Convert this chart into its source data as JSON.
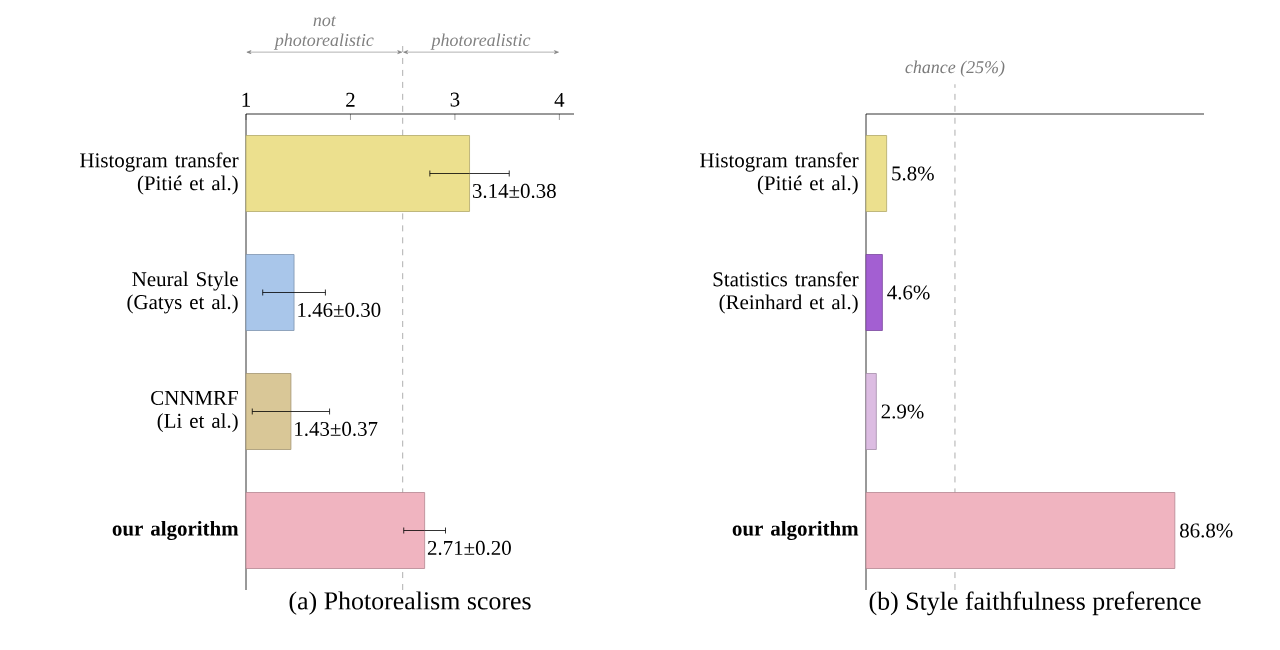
{
  "chart_data": [
    {
      "type": "bar",
      "orientation": "horizontal",
      "title": "(a) Photorealism scores",
      "categories": [
        "Histogram transfer (Pitié et al.)",
        "Neural Style (Gatys et al.)",
        "CNNMRF (Li et al.)",
        "**our algorithm**"
      ],
      "values": [
        3.14,
        1.46,
        1.43,
        2.71
      ],
      "errors": [
        0.38,
        0.3,
        0.37,
        0.2
      ],
      "value_labels": [
        "3.14±0.38",
        "1.46±0.30",
        "1.43±0.37",
        "2.71±0.20"
      ],
      "colors": [
        "#ece08e",
        "#a9c6ea",
        "#d9c797",
        "#f0b4c0"
      ],
      "xlim": [
        1,
        4.14
      ],
      "xticks": [
        1,
        2,
        3,
        4
      ],
      "ref_lines": [
        {
          "axis": "x",
          "value": 2.5,
          "color": "#999999",
          "line_style": "dashed"
        }
      ],
      "annotations": [
        "not photorealistic",
        "photorealistic"
      ]
    },
    {
      "type": "bar",
      "orientation": "horizontal",
      "title": "(b) Style faithfulness preference",
      "categories": [
        "Histogram transfer (Pitié et al.)",
        "Statistics transfer (Reinhard et al.)",
        null,
        "**our algorithm**"
      ],
      "values": [
        5.8,
        4.6,
        2.9,
        86.8
      ],
      "value_labels": [
        "5.8%",
        "4.6%",
        "2.9%",
        "86.8%"
      ],
      "colors": [
        "#ece08e",
        "#a35fd2",
        "#dcbce2",
        "#f0b4c0"
      ],
      "xlim": [
        0,
        95
      ],
      "tick_labels": "y",
      "ref_lines": [
        {
          "axis": "x",
          "value": 25,
          "label": "chance (25%)",
          "color": "#999999",
          "line_style": "dashed"
        }
      ]
    }
  ]
}
